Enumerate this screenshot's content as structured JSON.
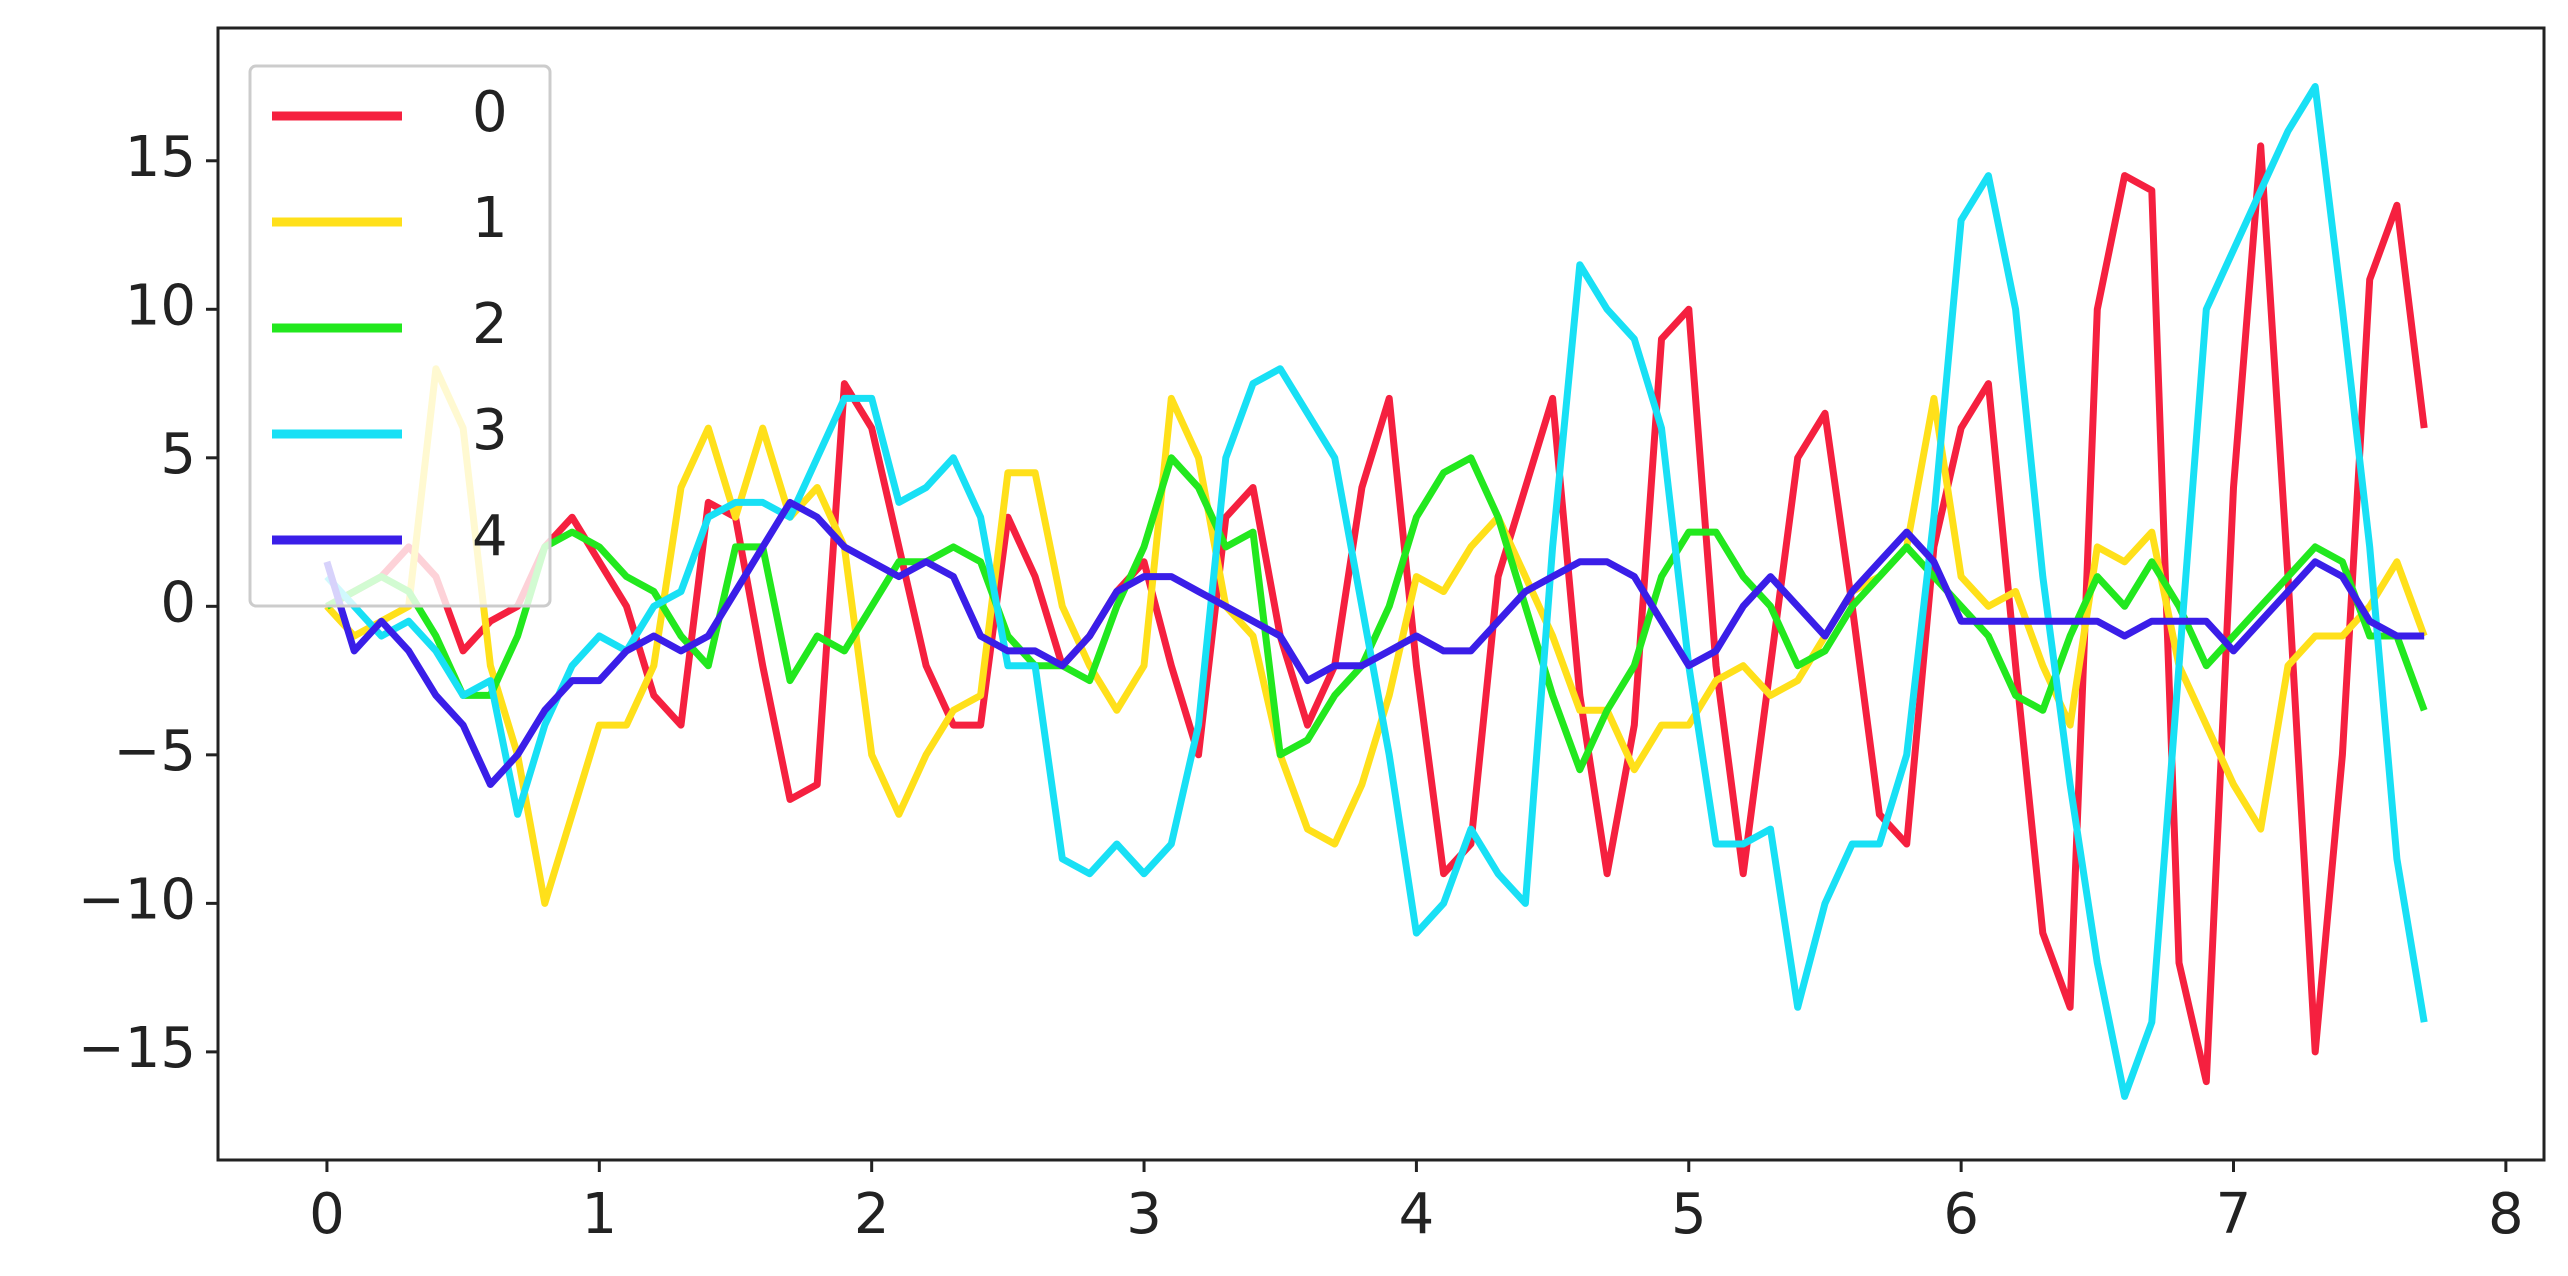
{
  "chart_data": {
    "type": "line",
    "x": [
      0,
      0.1,
      0.2,
      0.3,
      0.4,
      0.5,
      0.6,
      0.7,
      0.8,
      0.9,
      1,
      1.1,
      1.2,
      1.3,
      1.4,
      1.5,
      1.6,
      1.7,
      1.8,
      1.9,
      2,
      2.1,
      2.2,
      2.3,
      2.4,
      2.5,
      2.6,
      2.7,
      2.8,
      2.9,
      3,
      3.1,
      3.2,
      3.3,
      3.4,
      3.5,
      3.6,
      3.7,
      3.8,
      3.9,
      4,
      4.1,
      4.2,
      4.3,
      4.4,
      4.5,
      4.6,
      4.7,
      4.8,
      4.9,
      5,
      5.1,
      5.2,
      5.3,
      5.4,
      5.5,
      5.6,
      5.7,
      5.8,
      5.9,
      6,
      6.1,
      6.2,
      6.3,
      6.4,
      6.5,
      6.6,
      6.7,
      6.8,
      6.9,
      7,
      7.1,
      7.2,
      7.3,
      7.4,
      7.5,
      7.6,
      7.7
    ],
    "series": [
      {
        "name": "0",
        "color": "#f5203f",
        "values": [
          0,
          0.5,
          1,
          2,
          1,
          -1.5,
          -0.5,
          0,
          2,
          3,
          1.5,
          0,
          -3,
          -4,
          3.5,
          3,
          -2,
          -6.5,
          -6,
          7.5,
          6,
          2,
          -2,
          -4,
          -4,
          3,
          1,
          -2,
          -1,
          0.5,
          1.5,
          -2,
          -5,
          3,
          4,
          -1,
          -4,
          -2,
          4,
          7,
          -2,
          -9,
          -8,
          1,
          4,
          7,
          -3,
          -9,
          -4,
          9,
          10,
          -2,
          -9,
          -2,
          5,
          6.5,
          0,
          -7,
          -8,
          2,
          6,
          7.5,
          -2,
          -11,
          -13.5,
          10,
          14.5,
          14,
          -12,
          -16,
          4,
          15.5,
          1,
          -15,
          -5,
          11,
          13.5,
          6
        ]
      },
      {
        "name": "1",
        "color": "#ffe01a",
        "values": [
          0,
          -1,
          -0.5,
          0,
          8,
          6,
          -2,
          -5,
          -10,
          -7,
          -4,
          -4,
          -2,
          4,
          6,
          3,
          6,
          3,
          4,
          2,
          -5,
          -7,
          -5,
          -3.5,
          -3,
          4.5,
          4.5,
          0,
          -2,
          -3.5,
          -2,
          7,
          5,
          0,
          -1,
          -5,
          -7.5,
          -8,
          -6,
          -3,
          1,
          0.5,
          2,
          3,
          1,
          -1,
          -3.5,
          -3.5,
          -5.5,
          -4,
          -4,
          -2.5,
          -2,
          -3,
          -2.5,
          -1,
          0.5,
          1,
          2,
          7,
          1,
          0,
          0.5,
          -2,
          -4,
          2,
          1.5,
          2.5,
          -2,
          -4,
          -6,
          -7.5,
          -2,
          -1,
          -1,
          0,
          1.5,
          -1
        ]
      },
      {
        "name": "2",
        "color": "#22e81e",
        "values": [
          0,
          0.5,
          1,
          0.5,
          -1,
          -3,
          -3,
          -1,
          2,
          2.5,
          2,
          1,
          0.5,
          -1,
          -2,
          2,
          2,
          -2.5,
          -1,
          -1.5,
          0,
          1.5,
          1.5,
          2,
          1.5,
          -1,
          -2,
          -2,
          -2.5,
          0,
          2,
          5,
          4,
          2,
          2.5,
          -5,
          -4.5,
          -3,
          -2,
          0,
          3,
          4.5,
          5,
          3,
          0,
          -3,
          -5.5,
          -3.5,
          -2,
          1,
          2.5,
          2.5,
          1,
          0,
          -2,
          -1.5,
          0,
          1,
          2,
          1,
          0,
          -1,
          -3,
          -3.5,
          -1,
          1,
          0,
          1.5,
          0,
          -2,
          -1,
          0,
          1,
          2,
          1.5,
          -1,
          -1,
          -3.5
        ]
      },
      {
        "name": "3",
        "color": "#18e0f5",
        "values": [
          1,
          0,
          -1,
          -0.5,
          -1.5,
          -3,
          -2.5,
          -7,
          -4,
          -2,
          -1,
          -1.5,
          0,
          0.5,
          3,
          3.5,
          3.5,
          3,
          5,
          7,
          7,
          3.5,
          4,
          5,
          3,
          -2,
          -2,
          -8.5,
          -9,
          -8,
          -9,
          -8,
          -4,
          5,
          7.5,
          8,
          6.5,
          5,
          0,
          -5,
          -11,
          -10,
          -7.5,
          -9,
          -10,
          2,
          11.5,
          10,
          9,
          6,
          -2,
          -8,
          -8,
          -7.5,
          -13.5,
          -10,
          -8,
          -8,
          -5,
          3,
          13,
          14.5,
          10,
          1,
          -6,
          -12,
          -16.5,
          -14,
          -2,
          10,
          12,
          14,
          16,
          17.5,
          10,
          2,
          -8.5,
          -14
        ]
      },
      {
        "name": "4",
        "color": "#3a1ee8",
        "values": [
          1.5,
          -1.5,
          -0.5,
          -1.5,
          -3,
          -4,
          -6,
          -5,
          -3.5,
          -2.5,
          -2.5,
          -1.5,
          -1,
          -1.5,
          -1,
          0.5,
          2,
          3.5,
          3,
          2,
          1.5,
          1,
          1.5,
          1,
          -1,
          -1.5,
          -1.5,
          -2,
          -1,
          0.5,
          1,
          1,
          0.5,
          0,
          -0.5,
          -1,
          -2.5,
          -2,
          -2,
          -1.5,
          -1,
          -1.5,
          -1.5,
          -0.5,
          0.5,
          1,
          1.5,
          1.5,
          1,
          -0.5,
          -2,
          -1.5,
          0,
          1,
          0,
          -1,
          0.5,
          1.5,
          2.5,
          1.5,
          -0.5,
          -0.5,
          -0.5,
          -0.5,
          -0.5,
          -0.5,
          -1,
          -0.5,
          -0.5,
          -0.5,
          -1.5,
          -0.5,
          0.5,
          1.5,
          1,
          -0.5,
          -1,
          -1
        ]
      }
    ],
    "xlim": [
      -0.4,
      8.14
    ],
    "ylim": [
      -18.64,
      19.47
    ],
    "xticks": [
      0,
      1,
      2,
      3,
      4,
      5,
      6,
      7,
      8
    ],
    "yticks": [
      {
        "value": -15,
        "label": "−15"
      },
      {
        "value": -10,
        "label": "−10"
      },
      {
        "value": -5,
        "label": "−5"
      },
      0,
      5,
      10,
      15
    ],
    "legend": "upper left"
  }
}
